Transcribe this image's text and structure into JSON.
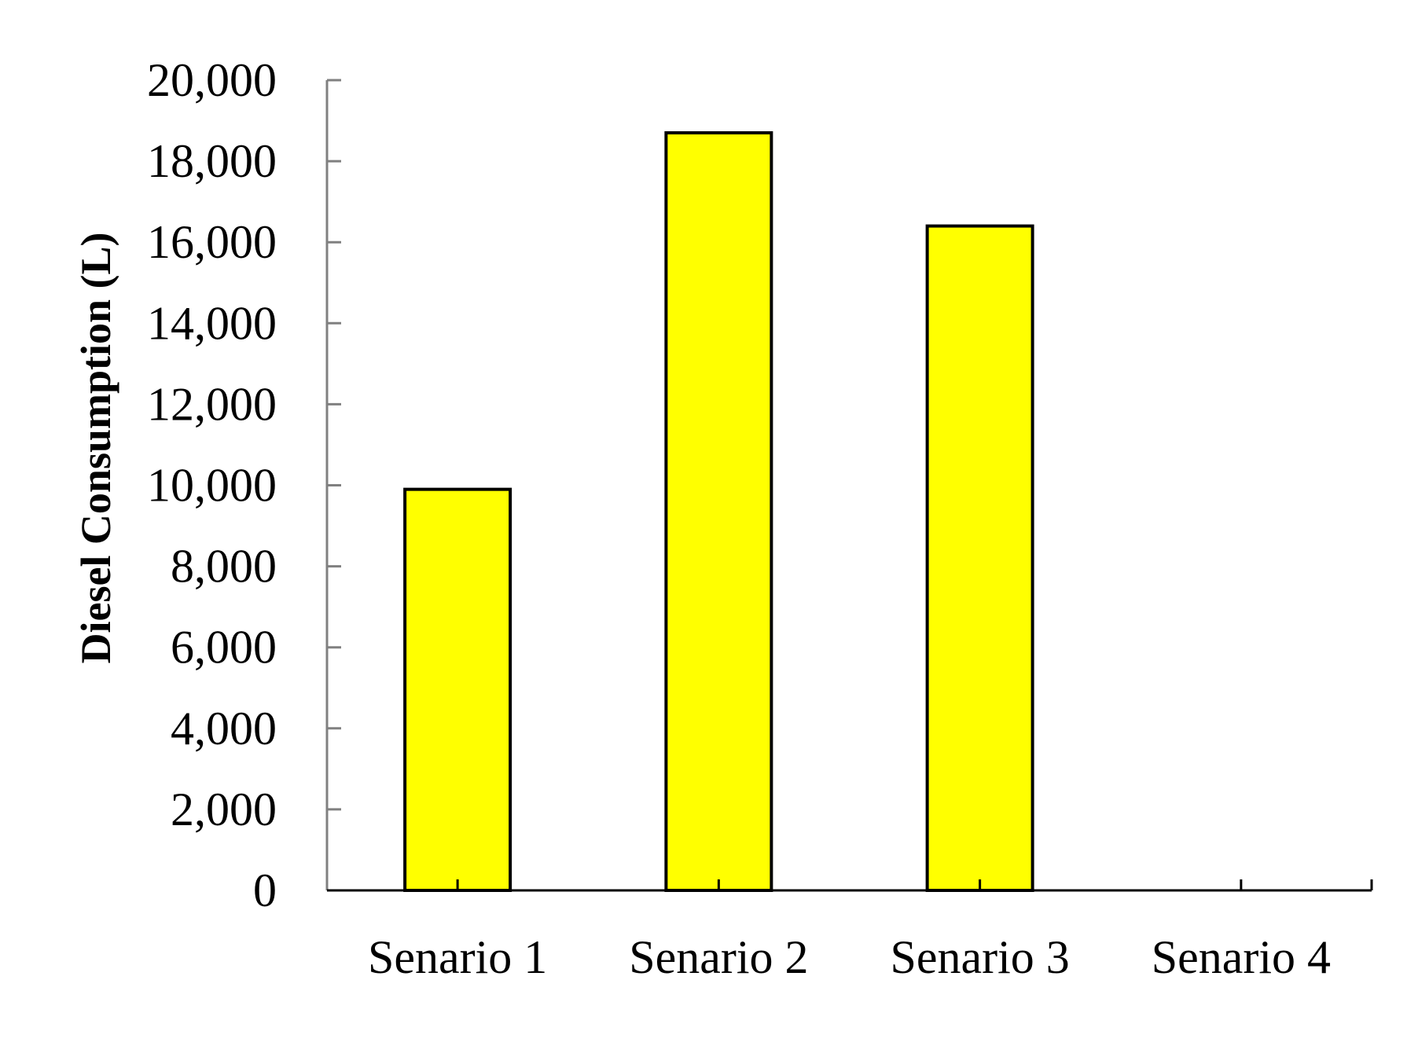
{
  "chart_data": {
    "type": "bar",
    "title": "",
    "xlabel": "",
    "ylabel": "Diesel Consumption (L)",
    "categories": [
      "Senario 1",
      "Senario 2",
      "Senario 3",
      "Senario 4"
    ],
    "values": [
      9900,
      18700,
      16400,
      0
    ],
    "ylim": [
      0,
      20000
    ],
    "yticks": [
      0,
      2000,
      4000,
      6000,
      8000,
      10000,
      12000,
      14000,
      16000,
      18000,
      20000
    ],
    "ytick_labels": [
      "0",
      "2,000",
      "4,000",
      "6,000",
      "8,000",
      "10,000",
      "12,000",
      "14,000",
      "16,000",
      "18,000",
      "20,000"
    ],
    "grid": false,
    "legend": "none",
    "colors": {
      "bar_fill": "#ffff00",
      "bar_stroke": "#000000",
      "y_axis": "#808080",
      "x_axis": "#000000"
    }
  }
}
